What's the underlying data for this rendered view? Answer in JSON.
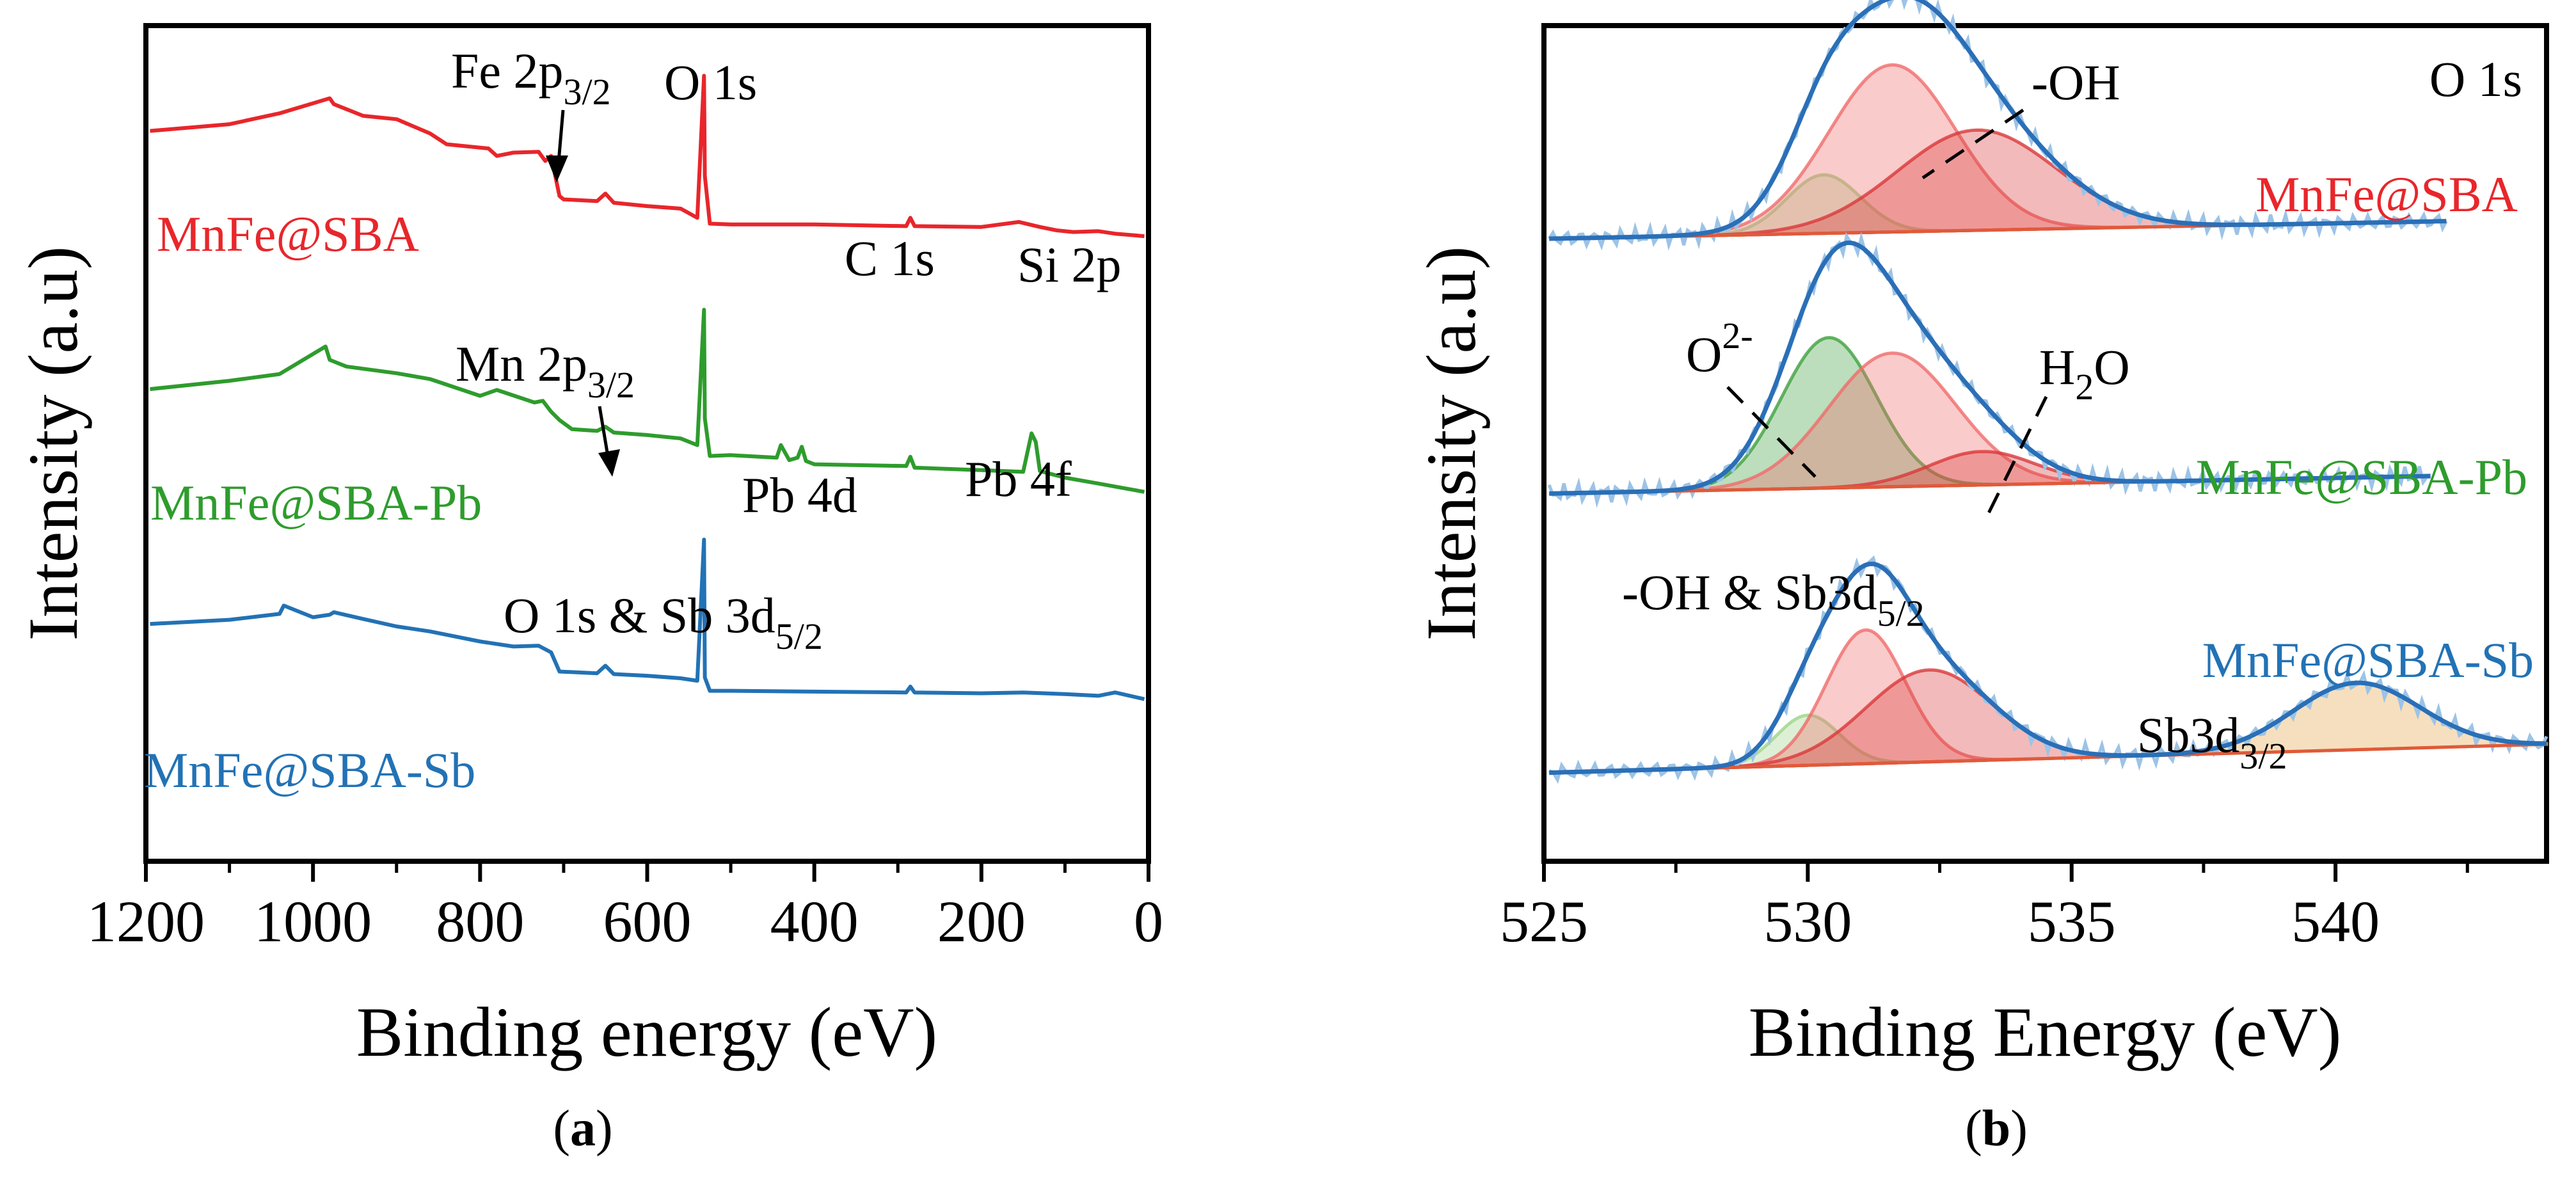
{
  "chart_data": [
    {
      "panel": "a",
      "type": "line",
      "title": "",
      "caption": "(a)",
      "xlabel": "Binding energy (eV)",
      "ylabel": "Intensity (a.u)",
      "xlim": [
        1200,
        0
      ],
      "x_reversed": true,
      "ylim": [
        0,
        100
      ],
      "xticks": [
        "1200",
        "1000",
        "800",
        "600",
        "400",
        "200",
        "0"
      ],
      "xtick_values": [
        1200,
        1000,
        800,
        600,
        400,
        200,
        0
      ],
      "series": [
        {
          "name": "MnFe@SBA",
          "color": "#e8262b",
          "x": [
            1195,
            1100,
            1040,
            980,
            975,
            940,
            900,
            860,
            840,
            790,
            780,
            760,
            730,
            722,
            715,
            705,
            700,
            660,
            650,
            640,
            600,
            560,
            540,
            532,
            531,
            525,
            500,
            400,
            290,
            285,
            280,
            200,
            155,
            130,
            110,
            90,
            60,
            40,
            5
          ],
          "y": [
            87.4,
            88.2,
            89.5,
            91.3,
            90.6,
            89.2,
            88.8,
            87.1,
            85.8,
            85.3,
            84.4,
            84.8,
            84.9,
            83.8,
            84.4,
            79.6,
            79.2,
            79.0,
            79.9,
            78.8,
            78.4,
            78.1,
            77.0,
            94.0,
            82.0,
            76.3,
            76.2,
            76.2,
            76.0,
            77.0,
            76.0,
            75.9,
            76.5,
            75.9,
            75.5,
            75.3,
            75.4,
            75.1,
            74.8
          ]
        },
        {
          "name": "MnFe@SBA-Pb",
          "color": "#2e9c2d",
          "x": [
            1195,
            1100,
            1040,
            985,
            980,
            960,
            900,
            860,
            800,
            780,
            735,
            725,
            715,
            705,
            690,
            660,
            650,
            640,
            600,
            560,
            540,
            532,
            531,
            525,
            500,
            445,
            440,
            430,
            420,
            415,
            410,
            400,
            290,
            285,
            280,
            200,
            150,
            140,
            135,
            130,
            100,
            60,
            5
          ],
          "y": [
            56.5,
            57.5,
            58.3,
            61.6,
            60.0,
            59.2,
            58.4,
            57.7,
            55.7,
            56.4,
            54.9,
            55.1,
            53.8,
            52.8,
            51.7,
            51.5,
            52.0,
            51.3,
            51.0,
            50.6,
            49.8,
            66.0,
            53.0,
            48.5,
            48.6,
            48.3,
            49.8,
            48.0,
            48.3,
            49.6,
            47.9,
            47.5,
            47.3,
            48.4,
            47.1,
            46.8,
            46.6,
            51.2,
            50.2,
            46.7,
            45.9,
            45.2,
            44.2
          ]
        },
        {
          "name": "MnFe@SBA-Sb",
          "color": "#2272b5",
          "x": [
            1195,
            1100,
            1040,
            1035,
            1000,
            980,
            975,
            940,
            900,
            860,
            800,
            760,
            730,
            715,
            705,
            660,
            650,
            640,
            600,
            560,
            540,
            532,
            531,
            525,
            500,
            400,
            290,
            285,
            280,
            200,
            150,
            100,
            60,
            40,
            5
          ],
          "y": [
            28.4,
            28.9,
            29.6,
            30.6,
            29.2,
            29.5,
            29.8,
            29.0,
            28.1,
            27.5,
            26.3,
            25.7,
            25.8,
            25.0,
            22.7,
            22.5,
            23.4,
            22.4,
            22.2,
            21.9,
            21.6,
            38.5,
            22.0,
            20.4,
            20.4,
            20.3,
            20.2,
            20.9,
            20.2,
            20.1,
            20.2,
            20.0,
            19.8,
            20.2,
            19.4
          ]
        }
      ],
      "sample_labels": [
        {
          "text": "MnFe@SBA",
          "color": "#e8262b"
        },
        {
          "text": "MnFe@SBA-Pb",
          "color": "#2e9c2d"
        },
        {
          "text": "MnFe@SBA-Sb",
          "color": "#2272b5"
        }
      ],
      "annotations": [
        {
          "id": "fe2p",
          "base": "Fe 2p",
          "sub": "3/2",
          "at_x": 710,
          "arrow": true
        },
        {
          "id": "o1s",
          "text": "O 1s",
          "at_x": 532
        },
        {
          "id": "c1s",
          "text": "C 1s",
          "at_x": 285
        },
        {
          "id": "si2p",
          "text": "Si 2p",
          "at_x": 103
        },
        {
          "id": "mn2p",
          "base": "Mn 2p",
          "sub": "3/2",
          "at_x": 642,
          "arrow": true
        },
        {
          "id": "pb4d",
          "text": "Pb 4d",
          "at_x": 430
        },
        {
          "id": "pb4f",
          "text": "Pb 4f",
          "at_x": 138
        },
        {
          "id": "o1s_sb",
          "base": "O 1s & Sb 3d",
          "sub": "5/2",
          "at_x": 530
        }
      ]
    },
    {
      "panel": "b",
      "type": "line",
      "title": "O 1s",
      "caption": "(b)",
      "xlabel": "Binding Energy (eV)",
      "ylabel": "Intensity (a.u)",
      "xlim": [
        525,
        544
      ],
      "xticks": [
        "525",
        "530",
        "535",
        "540"
      ],
      "xtick_values": [
        525,
        530,
        535,
        540
      ],
      "ylim": [
        0,
        100
      ],
      "envelope_color": "#2a6fb7",
      "samples": [
        {
          "name": "MnFe@SBA",
          "color": "#e8262b",
          "x_range": [
            525.1,
            542.1
          ],
          "baseline": [
            74.5,
            76.6
          ],
          "components": [
            {
              "center": 530.3,
              "height": 7.0,
              "sigma": 0.7,
              "color": "#9fd488",
              "label": "O2-"
            },
            {
              "center": 531.6,
              "height": 20.0,
              "sigma": 1.2,
              "color": "#f06b6b",
              "label": "-OH"
            },
            {
              "center": 533.2,
              "height": 12.0,
              "sigma": 1.5,
              "color": "#d9383a",
              "label": "H2O"
            }
          ]
        },
        {
          "name": "MnFe@SBA-Pb",
          "color": "#2e9c2d",
          "x_range": [
            525.1,
            541.8
          ],
          "baseline": [
            44.0,
            46.1
          ],
          "components": [
            {
              "center": 530.4,
              "height": 18.0,
              "sigma": 0.9,
              "color": "#3fa13f",
              "label": "O2-"
            },
            {
              "center": 531.6,
              "height": 16.0,
              "sigma": 1.2,
              "color": "#f06b6b",
              "label": "-OH & Sb3d5/2"
            },
            {
              "center": 533.3,
              "height": 4.0,
              "sigma": 1.0,
              "color": "#d9383a",
              "label": "H2O"
            }
          ]
        },
        {
          "name": "MnFe@SBA-Sb",
          "color": "#2272b5",
          "x_range": [
            525.1,
            544.0
          ],
          "baseline": [
            10.6,
            14.0
          ],
          "components": [
            {
              "center": 530.0,
              "height": 6.0,
              "sigma": 0.6,
              "color": "#9fd488",
              "label": "O2-"
            },
            {
              "center": 531.1,
              "height": 16.0,
              "sigma": 0.75,
              "color": "#f06b6b",
              "label": "-OH & Sb3d5/2"
            },
            {
              "center": 532.3,
              "height": 11.0,
              "sigma": 1.2,
              "color": "#d9383a",
              "label": "H2O"
            },
            {
              "center": 540.4,
              "height": 8.0,
              "sigma": 1.2,
              "color": "#e6a246",
              "label": "Sb3d3/2"
            }
          ]
        }
      ],
      "annotations": [
        {
          "id": "oh",
          "text": "-OH"
        },
        {
          "id": "o2",
          "base": "O",
          "sup": "2-"
        },
        {
          "id": "h2o",
          "base": "H",
          "sub": "2",
          "tail": "O"
        },
        {
          "id": "ohsb",
          "base": "-OH & Sb3d",
          "sub": "5/2"
        },
        {
          "id": "sb3d32",
          "base": "Sb3d",
          "sub": "3/2"
        }
      ]
    }
  ]
}
